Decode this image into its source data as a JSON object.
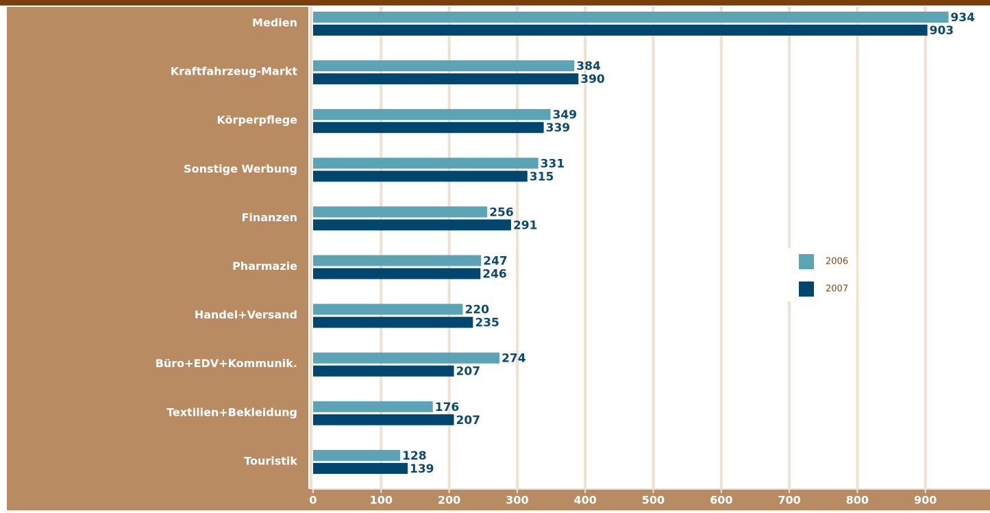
{
  "chart_data": {
    "type": "barh",
    "categories": [
      "Medien",
      "Kraftfahrzeug-Markt",
      "Körperpflege",
      "Sonstige Werbung",
      "Finanzen",
      "Pharmazie",
      "Handel+Versand",
      "Büro+EDV+Kommunik.",
      "Textilien+Bekleidung",
      "Touristik"
    ],
    "series": [
      {
        "name": "2006",
        "color": "#5ba3b5",
        "values": [
          934,
          384,
          349,
          331,
          256,
          247,
          220,
          274,
          176,
          128
        ]
      },
      {
        "name": "2007",
        "color": "#00466e",
        "values": [
          903,
          390,
          339,
          315,
          291,
          246,
          235,
          207,
          207,
          139
        ]
      }
    ],
    "xlim": [
      0,
      995
    ],
    "xticks": [
      0,
      100,
      200,
      300,
      400,
      500,
      600,
      700,
      800,
      900
    ],
    "grid": true,
    "legend": "right"
  }
}
